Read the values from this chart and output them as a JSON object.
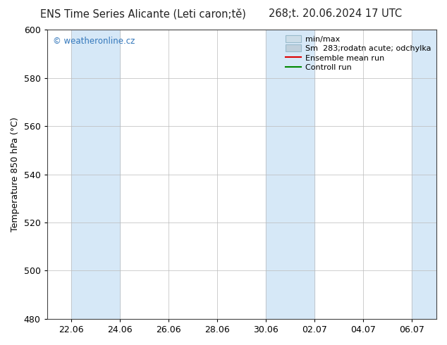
{
  "title_left": "ENS Time Series Alicante (Leti caron;tě)",
  "title_right": "268;t. 20.06.2024 17 UTC",
  "ylabel": "Temperature 850 hPa (°C)",
  "watermark": "© weatheronline.cz",
  "ylim": [
    480,
    600
  ],
  "yticks": [
    480,
    500,
    520,
    540,
    560,
    580,
    600
  ],
  "xlim": [
    0,
    16
  ],
  "xtick_positions": [
    1,
    3,
    5,
    7,
    9,
    11,
    13,
    15
  ],
  "xtick_labels": [
    "22.06",
    "24.06",
    "26.06",
    "28.06",
    "30.06",
    "02.07",
    "04.07",
    "06.07"
  ],
  "shaded_bands": [
    {
      "start_day": 1,
      "end_day": 3
    },
    {
      "start_day": 9,
      "end_day": 11
    },
    {
      "start_day": 15,
      "end_day": 16
    }
  ],
  "shade_color": "#d6e8f7",
  "bg_color": "#ffffff",
  "title_fontsize": 10.5,
  "tick_fontsize": 9,
  "ylabel_fontsize": 9,
  "watermark_color": "#3377bb",
  "legend_line1_label": "min/max",
  "legend_line2_label": "Sm  283;rodatn acute; odchylka",
  "legend_line3_label": "Ensemble mean run",
  "legend_line4_label": "Controll run",
  "legend_patch1_color": "#ccdde8",
  "legend_patch2_color": "#c0d0dc",
  "legend_red_color": "#dd0000",
  "legend_green_color": "#008800",
  "legend_fontsize": 8
}
